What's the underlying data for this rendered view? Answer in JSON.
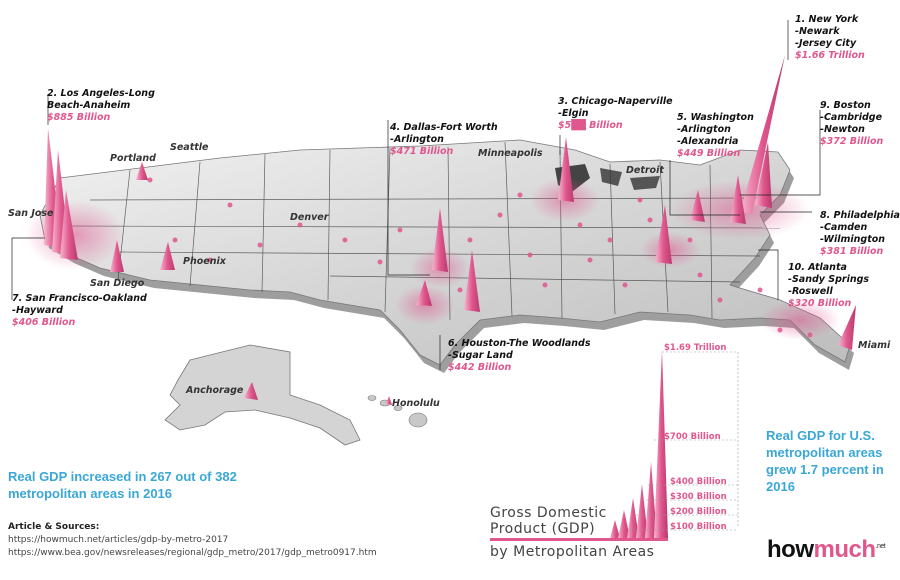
{
  "top_areas": [
    {
      "rank_name": "1. New York",
      "lines": [
        "-Newark",
        "-Jersey City"
      ],
      "value": "$1.66 Trillion"
    },
    {
      "rank_name": "2. Los Angeles-Long",
      "lines": [
        "Beach-Anaheim"
      ],
      "value": "$885 Billion"
    },
    {
      "rank_name": "3. Chicago-Naperville",
      "lines": [
        "-Elgin"
      ],
      "value": "$5██ Billion"
    },
    {
      "rank_name": "4. Dallas-Fort Worth",
      "lines": [
        "-Arlington"
      ],
      "value": "$471 Billion"
    },
    {
      "rank_name": "5. Washington",
      "lines": [
        "-Arlington",
        "-Alexandria"
      ],
      "value": "$449 Billion"
    },
    {
      "rank_name": "6. Houston-The Woodlands",
      "lines": [
        "-Sugar Land"
      ],
      "value": "$442 Billion"
    },
    {
      "rank_name": "7. San Francisco-Oakland",
      "lines": [
        "-Hayward"
      ],
      "value": "$406 Billion"
    },
    {
      "rank_name": "8. Philadelphia",
      "lines": [
        "-Camden",
        "-Wilmington"
      ],
      "value": "$381 Billion"
    },
    {
      "rank_name": "9. Boston",
      "lines": [
        "-Cambridge",
        "-Newton"
      ],
      "value": "$372 Billion"
    },
    {
      "rank_name": "10. Atlanta",
      "lines": [
        "-Sandy Springs",
        "-Roswell"
      ],
      "value": "$320 Billion"
    }
  ],
  "city_labels": [
    "Seattle",
    "Portland",
    "Minneapolis",
    "Detroit",
    "Denver",
    "San Jose",
    "San Diego",
    "Phoenix",
    "Miami",
    "Anchorage",
    "Honolulu"
  ],
  "stats": {
    "left": "Real GDP increased in 267 out of 382 metropolitan areas in 2016",
    "right": "Real GDP for U.S. metropolitan areas grew 1.7 percent in 2016"
  },
  "sources": {
    "heading": "Article & Sources:",
    "urls": [
      "https://howmuch.net/articles/gdp-by-metro-2017",
      "https://www.bea.gov/newsreleases/regional/gdp_metro/2017/gdp_metro0917.htm"
    ]
  },
  "legend": {
    "title_line1": "Gross Domestic",
    "title_line2": "Product (GDP)",
    "subtitle": "by Metropolitan Areas",
    "ticks": [
      "$1.69 Trillion",
      "$700 Billion",
      "$400 Billion",
      "$300 Billion",
      "$200 Billion",
      "$100 Billion"
    ]
  },
  "brand": {
    "name_a": "how",
    "name_b": "much",
    "suffix": ".net"
  },
  "colors": {
    "accent": "#e0578e",
    "stat_text": "#3aa7d6",
    "land": "#d9d9d9"
  }
}
